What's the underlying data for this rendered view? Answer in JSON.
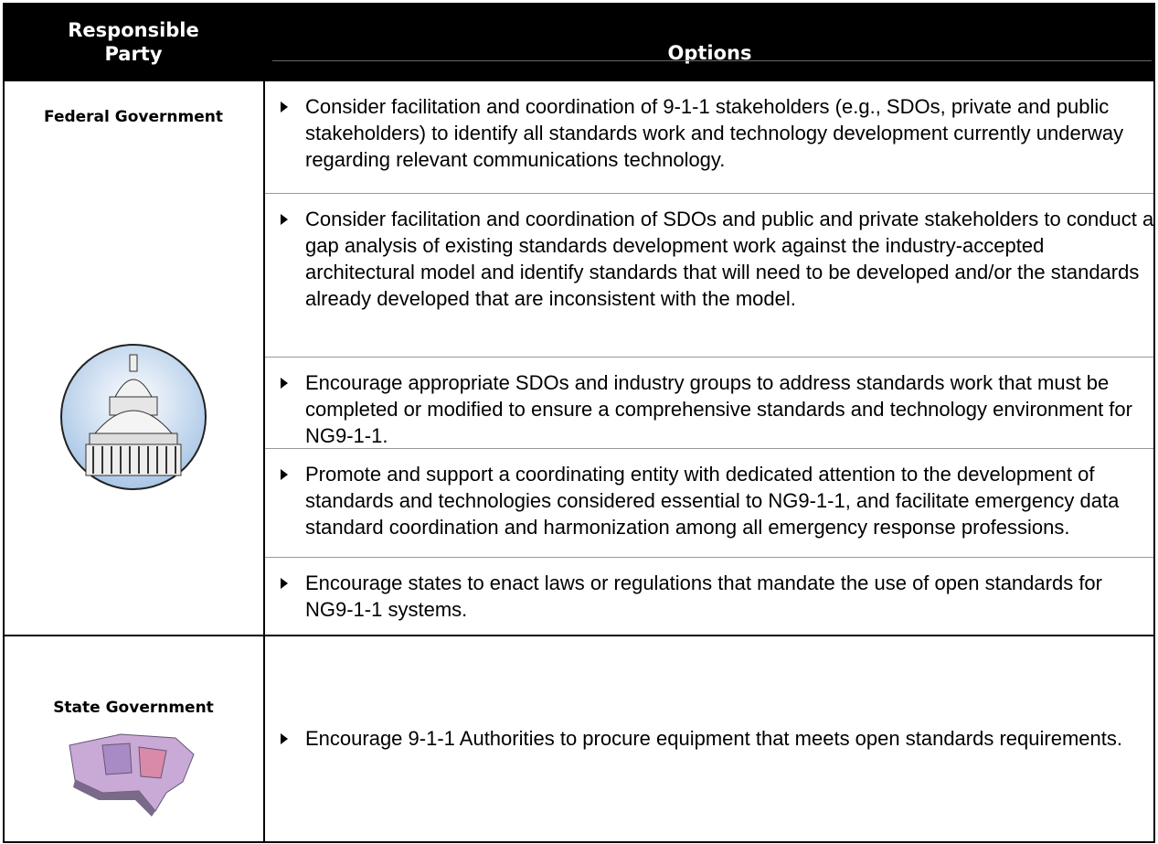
{
  "table": {
    "header": [
      "Responsible Party",
      "Options"
    ],
    "groups": [
      {
        "party": "Federal Government",
        "options": [
          "Consider facilitation and coordination of 9-1-1 stakeholders (e.g., SDOs, private and public stakeholders) to identify all standards work and technology development currently underway regarding relevant communications technology.",
          "Consider facilitation and coordination of SDOs and public and private stakeholders to conduct a gap analysis of existing standards development work against the industry-accepted architectural model and identify standards that will need to be developed and/or the standards already developed that are inconsistent with the model.",
          "Encourage appropriate SDOs and industry groups to address standards work that must be completed or modified to ensure a comprehensive standards and technology environment for NG9-1-1.",
          "Promote and support a coordinating entity with dedicated attention to the development of standards and technologies considered essential to NG9-1-1, and facilitate emergency data standard coordination and harmonization among all emergency response professions.",
          "Encourage states to enact laws or regulations that mandate the use of open standards for NG9-1-1 systems."
        ]
      },
      {
        "party": "State Government",
        "options": [
          "Encourage 9-1-1 Authorities to procure equipment that meets open standards requirements."
        ]
      }
    ]
  }
}
